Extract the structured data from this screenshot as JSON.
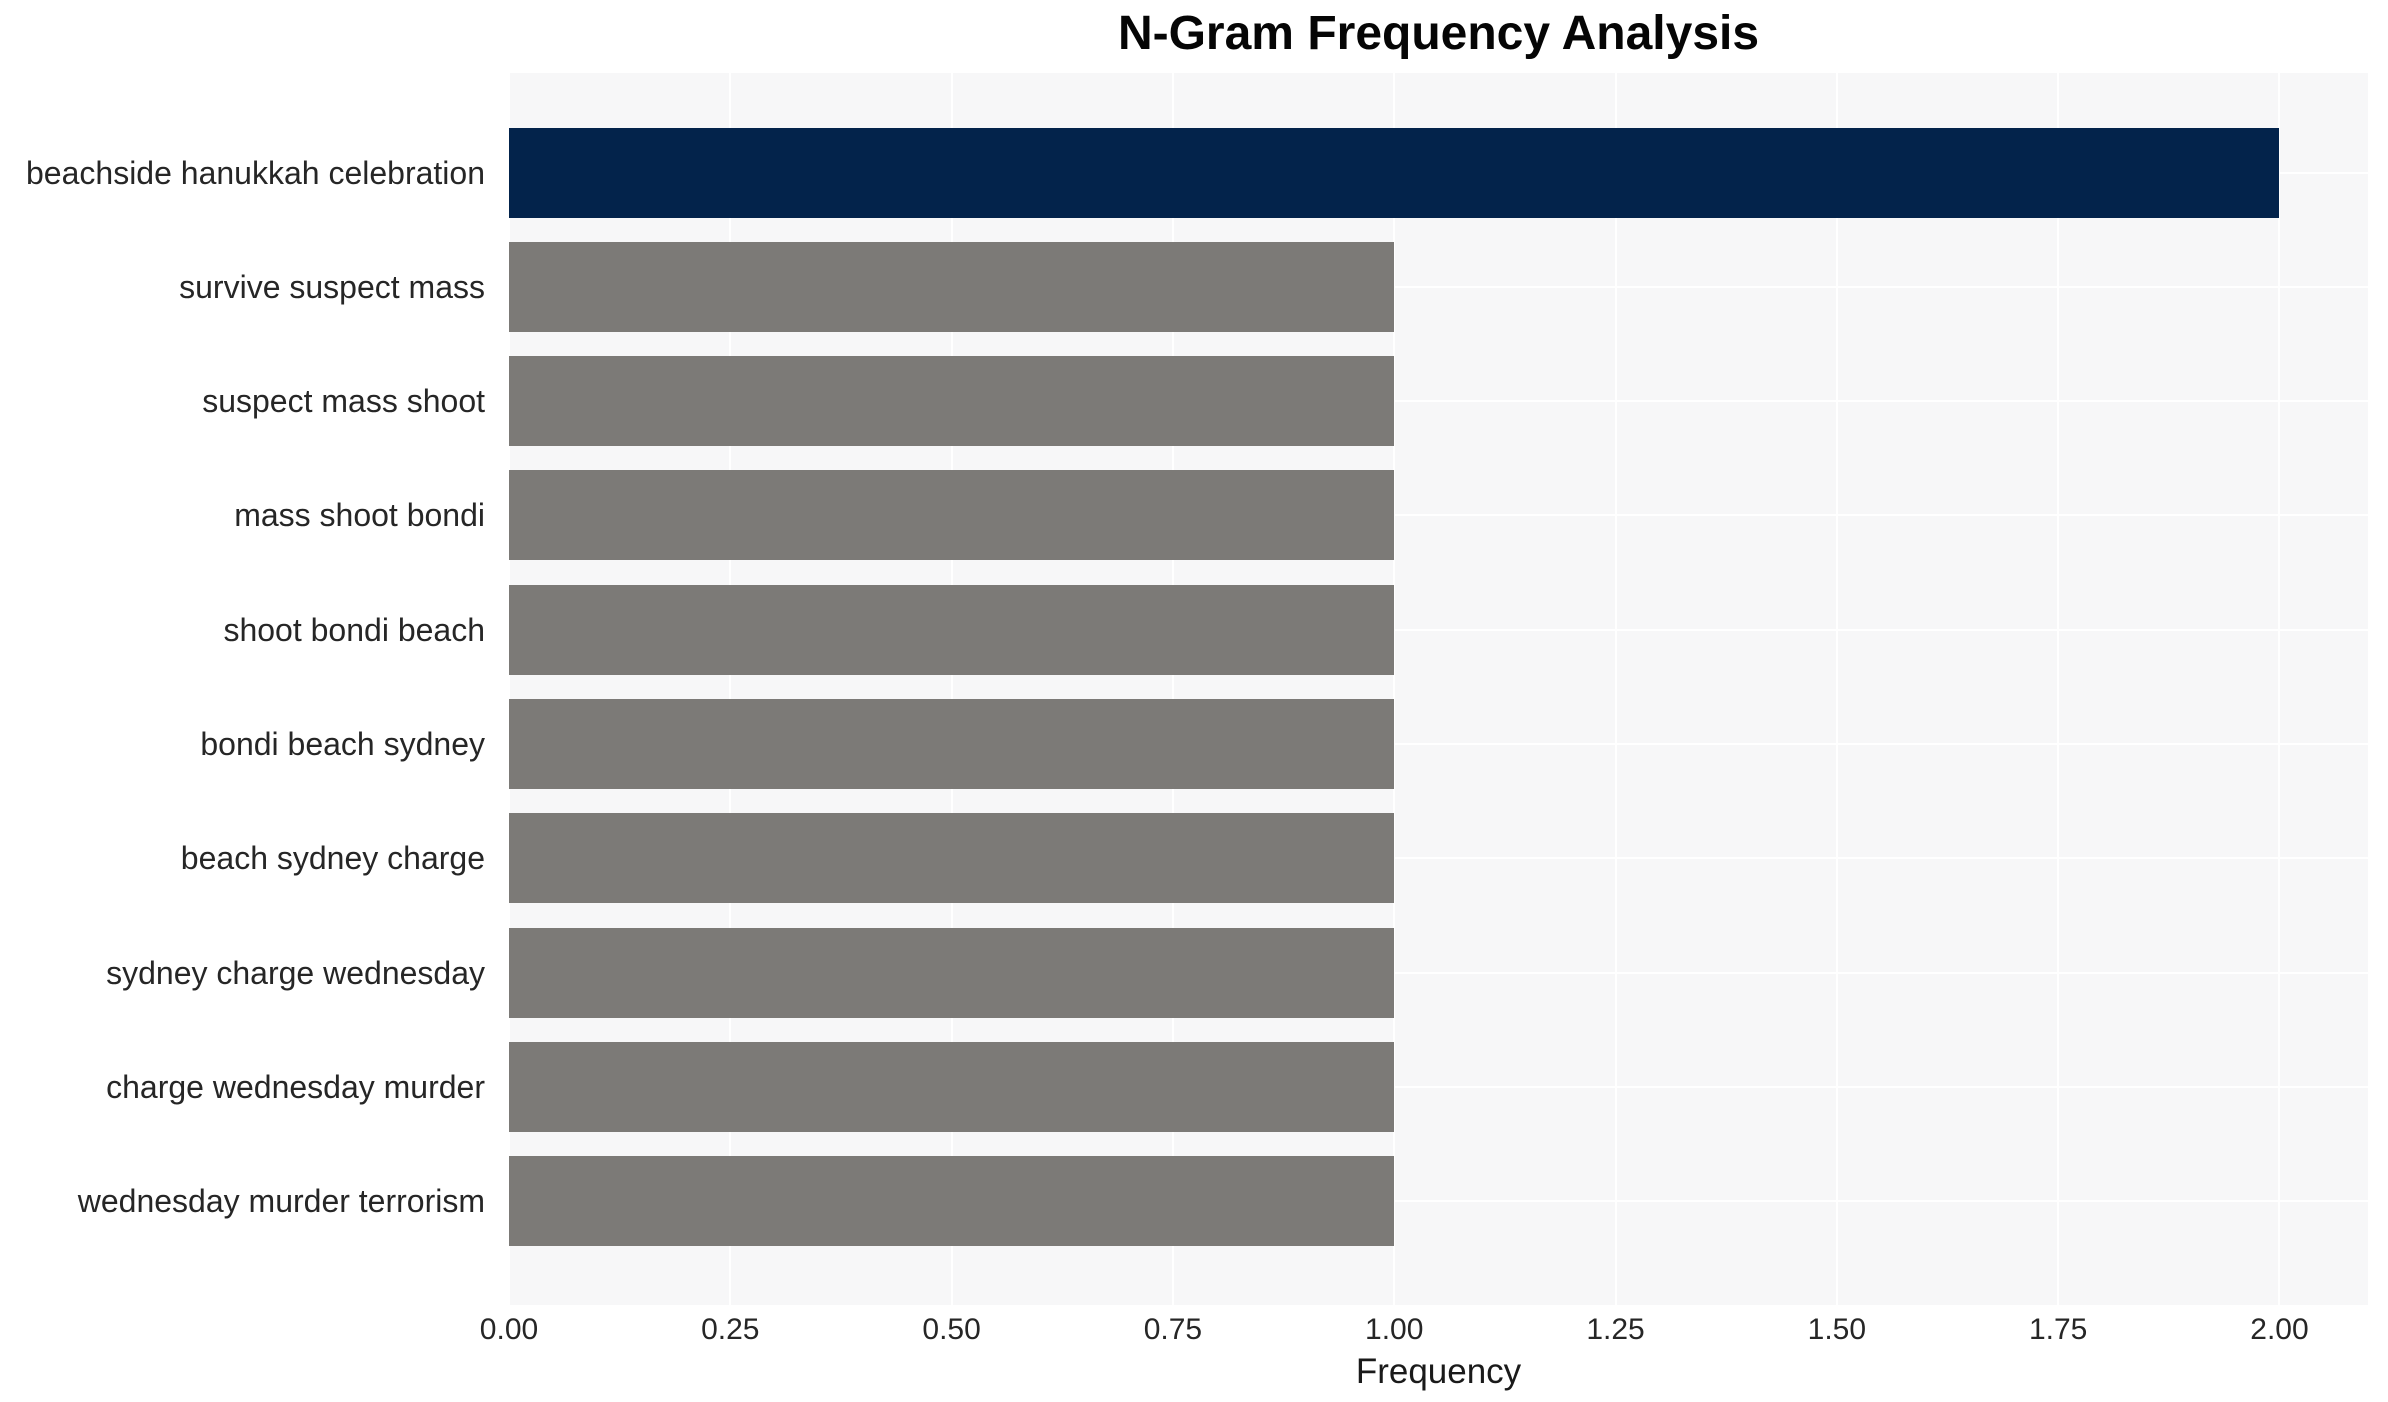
{
  "chart_data": {
    "type": "bar",
    "orientation": "horizontal",
    "title": "N-Gram Frequency Analysis",
    "xlabel": "Frequency",
    "ylabel": "",
    "categories": [
      "beachside hanukkah celebration",
      "survive suspect mass",
      "suspect mass shoot",
      "mass shoot bondi",
      "shoot bondi beach",
      "bondi beach sydney",
      "beach sydney charge",
      "sydney charge wednesday",
      "charge wednesday murder",
      "wednesday murder terrorism"
    ],
    "values": [
      2,
      1,
      1,
      1,
      1,
      1,
      1,
      1,
      1,
      1
    ],
    "xlim": [
      0,
      2.1
    ],
    "xticks": [
      0,
      0.25,
      0.5,
      0.75,
      1.0,
      1.25,
      1.5,
      1.75,
      2.0
    ],
    "xtick_labels": [
      "0.00",
      "0.25",
      "0.50",
      "0.75",
      "1.00",
      "1.25",
      "1.50",
      "1.75",
      "2.00"
    ],
    "grid": true,
    "legend_position": "none",
    "colors": {
      "highlight_bar": "#03234b",
      "default_bar": "#7c7a77",
      "plot_background": "#f7f7f8",
      "gridline": "#ffffff",
      "tick_text": "#262626",
      "title_text": "#050505"
    },
    "highlight_index": 0
  }
}
